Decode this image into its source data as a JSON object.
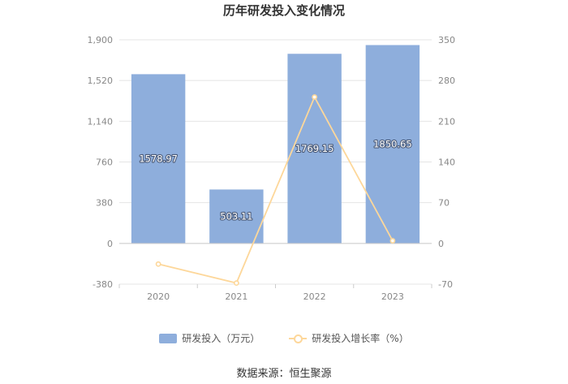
{
  "chart_data": {
    "type": "bar",
    "title": "历年研发投入变化情况",
    "categories": [
      "2020",
      "2021",
      "2022",
      "2023"
    ],
    "series": [
      {
        "name": "研发投入（万元）",
        "type": "bar",
        "axis": "left",
        "values": [
          1578.97,
          503.11,
          1769.15,
          1850.65
        ],
        "labels": [
          "1578.97",
          "503.11",
          "1769.15",
          "1850.65"
        ],
        "color": "#8eaedc"
      },
      {
        "name": "研发投入增长率（%）",
        "type": "line",
        "axis": "right",
        "values": [
          -35.5,
          -68.1,
          251.6,
          4.6
        ],
        "color": "#fdd79a"
      }
    ],
    "y_left": {
      "ylim": [
        -380,
        1900
      ],
      "ticks": [
        -380,
        0,
        380,
        760,
        1140,
        1520,
        1900
      ],
      "tick_labels": [
        "-380",
        "0",
        "380",
        "760",
        "1,140",
        "1,520",
        "1,900"
      ]
    },
    "y_right": {
      "ylim": [
        -70,
        350
      ],
      "ticks": [
        -70,
        0,
        70,
        140,
        210,
        280,
        350
      ],
      "tick_labels": [
        "-70",
        "0",
        "70",
        "140",
        "210",
        "280",
        "350"
      ]
    },
    "grid": true,
    "legend_position": "bottom"
  },
  "source": "数据来源：恒生聚源"
}
